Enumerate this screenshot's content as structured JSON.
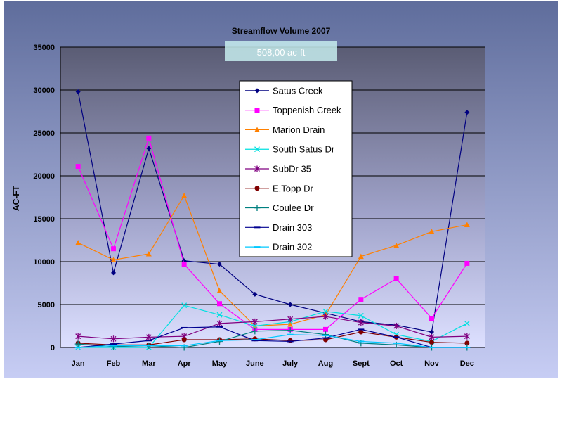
{
  "chart_data": {
    "type": "line",
    "title": "Streamflow Volume 2007",
    "ylabel": "AC-FT",
    "xlabel": "",
    "ylim": [
      0,
      35000
    ],
    "yticks": [
      0,
      5000,
      10000,
      15000,
      20000,
      25000,
      30000,
      35000
    ],
    "categories": [
      "Jan",
      "Feb",
      "Mar",
      "Apr",
      "May",
      "June",
      "July",
      "Aug",
      "Sept",
      "Oct",
      "Nov",
      "Dec"
    ],
    "grid": true,
    "legend_position": "center",
    "overlay_label": "508,00 ac-ft",
    "series": [
      {
        "name": "Satus Creek",
        "color": "#000080",
        "marker": "diamond",
        "values": [
          29800,
          8700,
          23200,
          10100,
          9700,
          6200,
          5000,
          4000,
          3000,
          2600,
          1800,
          27400
        ]
      },
      {
        "name": "Toppenish Creek",
        "color": "#ff00ff",
        "marker": "square",
        "values": [
          21100,
          11500,
          24400,
          9700,
          5100,
          2100,
          2100,
          2100,
          5600,
          8000,
          3400,
          9800
        ]
      },
      {
        "name": "Marion Drain",
        "color": "#ff8000",
        "marker": "triangle",
        "values": [
          12200,
          10200,
          10900,
          17700,
          6600,
          2500,
          2700,
          3800,
          10600,
          11900,
          13500,
          14300
        ]
      },
      {
        "name": "South Satus Dr",
        "color": "#00e0e0",
        "marker": "x",
        "values": [
          0,
          0,
          0,
          4900,
          3800,
          2500,
          3000,
          4200,
          3700,
          1500,
          700,
          2800
        ]
      },
      {
        "name": "SubDr 35",
        "color": "#800080",
        "marker": "star",
        "values": [
          1300,
          1000,
          1200,
          1300,
          2800,
          3000,
          3300,
          3600,
          2900,
          2500,
          1200,
          1300
        ]
      },
      {
        "name": "E.Topp Dr",
        "color": "#800000",
        "marker": "circle",
        "values": [
          500,
          300,
          300,
          900,
          900,
          1000,
          800,
          900,
          1800,
          1200,
          600,
          500
        ]
      },
      {
        "name": "Coulee Dr",
        "color": "#008080",
        "marker": "plus",
        "values": [
          400,
          100,
          200,
          0,
          700,
          1900,
          2000,
          1500,
          500,
          300,
          0,
          0
        ]
      },
      {
        "name": "Drain 303",
        "color": "#000090",
        "marker": "dash",
        "values": [
          0,
          400,
          800,
          2300,
          2400,
          800,
          700,
          1100,
          2100,
          1200,
          0,
          0
        ]
      },
      {
        "name": "Drain 302",
        "color": "#00c8ff",
        "marker": "dash",
        "values": [
          0,
          200,
          200,
          200,
          800,
          900,
          1500,
          1400,
          700,
          500,
          0,
          0
        ]
      }
    ]
  }
}
